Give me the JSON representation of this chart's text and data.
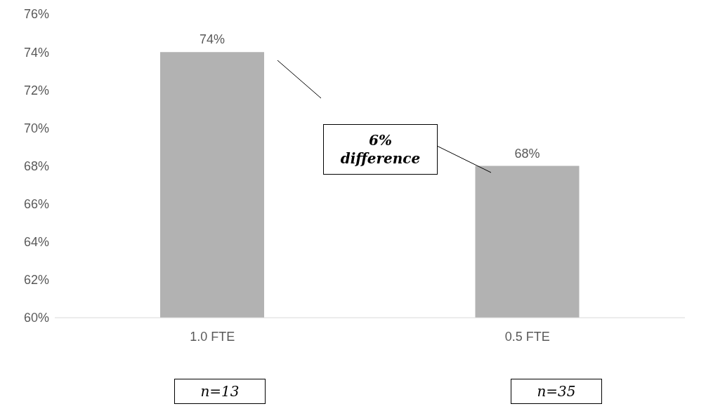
{
  "chart_data": {
    "type": "bar",
    "categories": [
      "1.0 FTE",
      "0.5 FTE"
    ],
    "values": [
      74,
      68
    ],
    "color": "#b2b2b2",
    "value_labels": [
      "74%",
      "68%"
    ],
    "ylim": [
      60,
      76
    ],
    "yticks": [
      {
        "value": 60,
        "label": "60%"
      },
      {
        "value": 62,
        "label": "62%"
      },
      {
        "value": 64,
        "label": "64%"
      },
      {
        "value": 66,
        "label": "66%"
      },
      {
        "value": 68,
        "label": "68%"
      },
      {
        "value": 70,
        "label": "70%"
      },
      {
        "value": 72,
        "label": "72%"
      },
      {
        "value": 74,
        "label": "74%"
      },
      {
        "value": 76,
        "label": "76%"
      }
    ],
    "grid": false,
    "legend": false,
    "annotations": [
      "6% difference",
      "n=13",
      "n=35"
    ]
  }
}
